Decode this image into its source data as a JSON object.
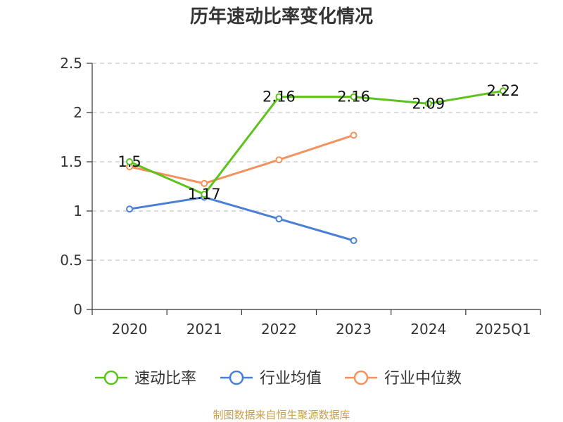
{
  "chart_data": {
    "type": "line",
    "title": "历年速动比率变化情况",
    "categories": [
      "2020",
      "2021",
      "2022",
      "2023",
      "2024",
      "2025Q1"
    ],
    "ylim": [
      0,
      2.5
    ],
    "yticks": [
      "0",
      "0.5",
      "1",
      "1.5",
      "2",
      "2.5"
    ],
    "grid": true,
    "legend_position": "bottom",
    "series": [
      {
        "name": "速动比率",
        "color": "#5cc21c",
        "values": [
          1.5,
          1.17,
          2.16,
          2.16,
          2.09,
          2.22
        ],
        "labels": [
          "1.5",
          "1.17",
          "2.16",
          "2.16",
          "2.09",
          "2.22"
        ]
      },
      {
        "name": "行业均值",
        "color": "#4a7fd6",
        "values": [
          1.02,
          1.14,
          0.92,
          0.7,
          null,
          null
        ]
      },
      {
        "name": "行业中位数",
        "color": "#f4925e",
        "values": [
          1.45,
          1.28,
          1.52,
          1.77,
          null,
          null
        ]
      }
    ]
  },
  "source_text": "制图数据来自恒生聚源数据库"
}
